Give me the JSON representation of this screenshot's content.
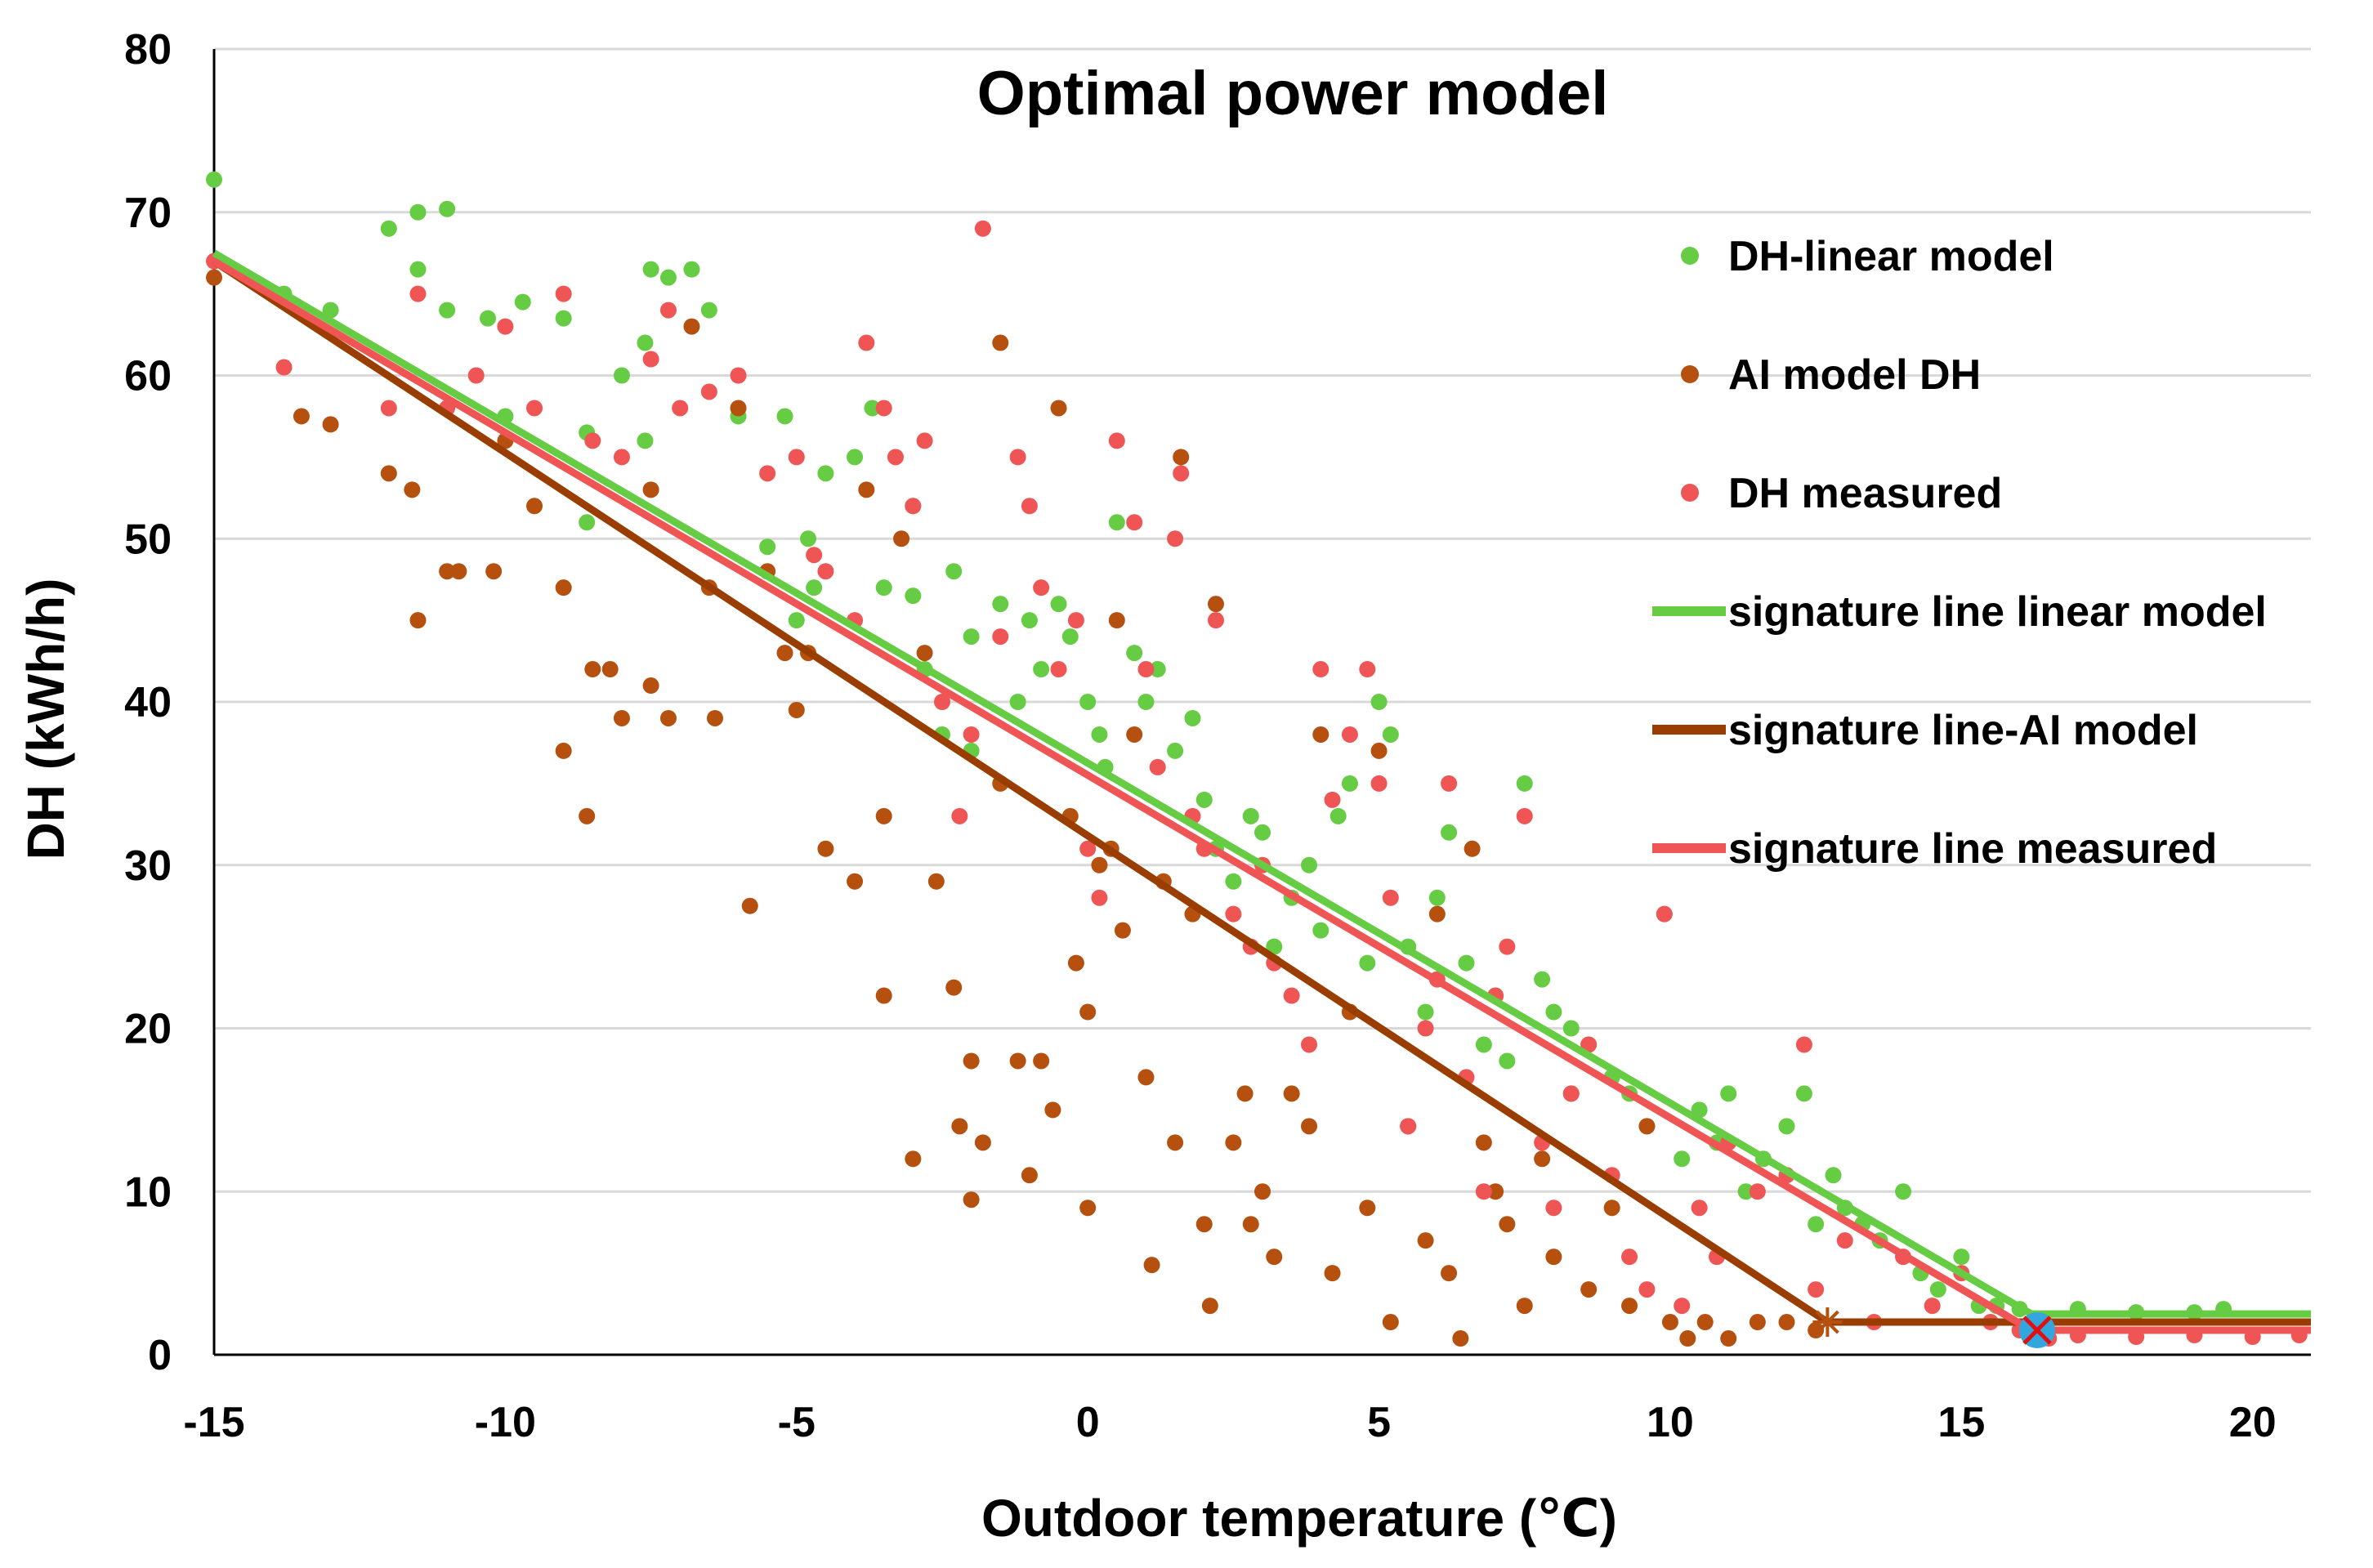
{
  "chart_data": {
    "type": "scatter",
    "title": "Optimal power model",
    "xlabel": "Outdoor temperature (℃)",
    "ylabel": "DH (kWh/h)",
    "xlim": [
      -15,
      21
    ],
    "ylim": [
      0,
      80
    ],
    "xticks": [
      -15,
      -10,
      -5,
      0,
      5,
      10,
      15,
      20
    ],
    "yticks": [
      0,
      10,
      20,
      30,
      40,
      50,
      60,
      70,
      80
    ],
    "grid": "horizontal",
    "legend_position": "right",
    "colors": {
      "green": "#66cc44",
      "brown": "#b5500f",
      "red": "#f05555",
      "blue_marker": "#33a7dd"
    },
    "series": [
      {
        "name": "DH-linear model",
        "kind": "scatter",
        "color": "#66cc44",
        "points": [
          [
            -15,
            72
          ],
          [
            -13.8,
            65
          ],
          [
            -13,
            64
          ],
          [
            -12,
            69
          ],
          [
            -11.5,
            70
          ],
          [
            -11.5,
            66.5
          ],
          [
            -11,
            70.2
          ],
          [
            -11,
            64
          ],
          [
            -10.3,
            63.5
          ],
          [
            -10,
            57.5
          ],
          [
            -9.7,
            64.5
          ],
          [
            -9,
            63.5
          ],
          [
            -8.6,
            56.5
          ],
          [
            -8.6,
            51
          ],
          [
            -8,
            60
          ],
          [
            -7.6,
            62
          ],
          [
            -7.5,
            66.5
          ],
          [
            -7.2,
            66
          ],
          [
            -7.6,
            56
          ],
          [
            -6.8,
            66.5
          ],
          [
            -6.5,
            64
          ],
          [
            -6,
            57.5
          ],
          [
            -5.5,
            49.5
          ],
          [
            -5.2,
            57.5
          ],
          [
            -5,
            45
          ],
          [
            -4.8,
            50
          ],
          [
            -4.7,
            47
          ],
          [
            -4.5,
            54
          ],
          [
            -4,
            55
          ],
          [
            -3.7,
            58
          ],
          [
            -3.5,
            47
          ],
          [
            -3,
            46.5
          ],
          [
            -3,
            52
          ],
          [
            -2.8,
            42
          ],
          [
            -2.5,
            38
          ],
          [
            -2.3,
            48
          ],
          [
            -2,
            44
          ],
          [
            -2,
            37
          ],
          [
            -1.5,
            46
          ],
          [
            -1.2,
            40
          ],
          [
            -1,
            45
          ],
          [
            -0.8,
            42
          ],
          [
            -0.5,
            46
          ],
          [
            -0.3,
            44
          ],
          [
            0,
            40
          ],
          [
            0.2,
            38
          ],
          [
            0.3,
            36
          ],
          [
            0.5,
            51
          ],
          [
            0.8,
            43
          ],
          [
            1,
            40
          ],
          [
            1.2,
            42
          ],
          [
            1.5,
            37
          ],
          [
            1.8,
            39
          ],
          [
            2,
            34
          ],
          [
            2.2,
            31
          ],
          [
            2.5,
            29
          ],
          [
            2.8,
            33
          ],
          [
            3,
            32
          ],
          [
            3.2,
            25
          ],
          [
            3.5,
            28
          ],
          [
            3.8,
            30
          ],
          [
            4,
            26
          ],
          [
            4.3,
            33
          ],
          [
            4.5,
            35
          ],
          [
            4.8,
            24
          ],
          [
            5,
            40
          ],
          [
            5.2,
            38
          ],
          [
            5.5,
            25
          ],
          [
            5.8,
            21
          ],
          [
            6,
            28
          ],
          [
            6.2,
            32
          ],
          [
            6.5,
            24
          ],
          [
            6.8,
            19
          ],
          [
            7,
            22
          ],
          [
            7.2,
            18
          ],
          [
            7.5,
            35
          ],
          [
            7.8,
            23
          ],
          [
            8,
            21
          ],
          [
            8.3,
            20
          ],
          [
            8.6,
            19
          ],
          [
            9,
            17
          ],
          [
            9.3,
            16
          ],
          [
            9.6,
            14
          ],
          [
            9.9,
            27
          ],
          [
            10.2,
            12
          ],
          [
            10.5,
            15
          ],
          [
            10.8,
            13
          ],
          [
            11,
            16
          ],
          [
            11.3,
            10
          ],
          [
            11.6,
            12
          ],
          [
            12,
            14
          ],
          [
            12.3,
            16
          ],
          [
            12.5,
            8
          ],
          [
            12.8,
            11
          ],
          [
            13,
            9
          ],
          [
            13.3,
            8
          ],
          [
            13.6,
            7
          ],
          [
            14,
            10
          ],
          [
            14.3,
            5
          ],
          [
            14.6,
            4
          ],
          [
            15,
            6
          ],
          [
            15.3,
            3
          ],
          [
            15.6,
            3
          ],
          [
            16,
            2.8
          ],
          [
            17,
            2.8
          ],
          [
            18,
            2.6
          ],
          [
            19,
            2.6
          ],
          [
            19.5,
            2.8
          ]
        ]
      },
      {
        "name": "AI model DH",
        "kind": "scatter",
        "color": "#b5500f",
        "points": [
          [
            -15,
            66
          ],
          [
            -13.5,
            57.5
          ],
          [
            -13,
            57
          ],
          [
            -12,
            54
          ],
          [
            -11.6,
            53
          ],
          [
            -11.5,
            45
          ],
          [
            -11,
            48
          ],
          [
            -10.8,
            48
          ],
          [
            -10.2,
            48
          ],
          [
            -10,
            56
          ],
          [
            -9.5,
            52
          ],
          [
            -9,
            37
          ],
          [
            -9,
            47
          ],
          [
            -8.6,
            33
          ],
          [
            -8.5,
            42
          ],
          [
            -8.2,
            42
          ],
          [
            -8,
            39
          ],
          [
            -7.5,
            53
          ],
          [
            -7.5,
            41
          ],
          [
            -7.2,
            39
          ],
          [
            -6.8,
            63
          ],
          [
            -6.5,
            47
          ],
          [
            -6.4,
            39
          ],
          [
            -6,
            58
          ],
          [
            -5.8,
            27.5
          ],
          [
            -5.5,
            48
          ],
          [
            -5.2,
            43
          ],
          [
            -5,
            39.5
          ],
          [
            -4.8,
            43
          ],
          [
            -4.5,
            31
          ],
          [
            -4,
            29
          ],
          [
            -3.8,
            53
          ],
          [
            -3.5,
            33
          ],
          [
            -3.5,
            22
          ],
          [
            -3.2,
            50
          ],
          [
            -3,
            12
          ],
          [
            -2.8,
            43
          ],
          [
            -2.6,
            29
          ],
          [
            -2.3,
            22.5
          ],
          [
            -2.2,
            14
          ],
          [
            -2,
            18
          ],
          [
            -2,
            9.5
          ],
          [
            -1.8,
            13
          ],
          [
            -1.5,
            62
          ],
          [
            -1.5,
            35
          ],
          [
            -1.2,
            18
          ],
          [
            -1,
            11
          ],
          [
            -0.8,
            18
          ],
          [
            -0.6,
            15
          ],
          [
            -0.5,
            58
          ],
          [
            -0.3,
            33
          ],
          [
            -0.2,
            24
          ],
          [
            0,
            9
          ],
          [
            0,
            21
          ],
          [
            0.2,
            30
          ],
          [
            0.4,
            31
          ],
          [
            0.5,
            45
          ],
          [
            0.6,
            26
          ],
          [
            0.8,
            38
          ],
          [
            1,
            17
          ],
          [
            1.1,
            5.5
          ],
          [
            1.3,
            29
          ],
          [
            1.5,
            13
          ],
          [
            1.6,
            55
          ],
          [
            1.8,
            27
          ],
          [
            2,
            8
          ],
          [
            2.1,
            3
          ],
          [
            2.2,
            46
          ],
          [
            2.5,
            13
          ],
          [
            2.7,
            16
          ],
          [
            2.8,
            8
          ],
          [
            3,
            10
          ],
          [
            3.2,
            6
          ],
          [
            3.5,
            16
          ],
          [
            3.8,
            14
          ],
          [
            4,
            38
          ],
          [
            4.2,
            5
          ],
          [
            4.5,
            21
          ],
          [
            4.8,
            9
          ],
          [
            5,
            37
          ],
          [
            5.2,
            2
          ],
          [
            5.5,
            14
          ],
          [
            5.8,
            7
          ],
          [
            6,
            27
          ],
          [
            6.2,
            5
          ],
          [
            6.4,
            1
          ],
          [
            6.6,
            31
          ],
          [
            6.8,
            13
          ],
          [
            7,
            10
          ],
          [
            7.2,
            8
          ],
          [
            7.5,
            3
          ],
          [
            7.8,
            12
          ],
          [
            8,
            6
          ],
          [
            8.3,
            16
          ],
          [
            8.6,
            4
          ],
          [
            9,
            9
          ],
          [
            9.3,
            3
          ],
          [
            9.6,
            14
          ],
          [
            10,
            2
          ],
          [
            10.3,
            1
          ],
          [
            10.6,
            2
          ],
          [
            11,
            1
          ],
          [
            11.5,
            2
          ],
          [
            12,
            2
          ],
          [
            12.5,
            1.5
          ]
        ]
      },
      {
        "name": "DH measured",
        "kind": "scatter",
        "color": "#f05555",
        "points": [
          [
            -15,
            67
          ],
          [
            -13.8,
            60.5
          ],
          [
            -12,
            58
          ],
          [
            -11.5,
            65
          ],
          [
            -11,
            58
          ],
          [
            -10.5,
            60
          ],
          [
            -10,
            63
          ],
          [
            -9.5,
            58
          ],
          [
            -9,
            65
          ],
          [
            -8.5,
            56
          ],
          [
            -8,
            55
          ],
          [
            -7.5,
            61
          ],
          [
            -7.2,
            64
          ],
          [
            -7,
            58
          ],
          [
            -6.5,
            59
          ],
          [
            -6,
            60
          ],
          [
            -5.5,
            54
          ],
          [
            -5,
            55
          ],
          [
            -4.7,
            49
          ],
          [
            -4.5,
            48
          ],
          [
            -4,
            45
          ],
          [
            -3.8,
            62
          ],
          [
            -3.5,
            58
          ],
          [
            -3.3,
            55
          ],
          [
            -3,
            52
          ],
          [
            -2.8,
            56
          ],
          [
            -2.5,
            40
          ],
          [
            -2.2,
            33
          ],
          [
            -2,
            38
          ],
          [
            -1.8,
            69
          ],
          [
            -1.5,
            44
          ],
          [
            -1.2,
            55
          ],
          [
            -1,
            52
          ],
          [
            -0.8,
            47
          ],
          [
            -0.5,
            42
          ],
          [
            -0.2,
            45
          ],
          [
            0,
            31
          ],
          [
            0.2,
            28
          ],
          [
            0.5,
            56
          ],
          [
            0.8,
            51
          ],
          [
            1,
            42
          ],
          [
            1.2,
            36
          ],
          [
            1.5,
            50
          ],
          [
            1.6,
            54
          ],
          [
            1.8,
            33
          ],
          [
            2,
            31
          ],
          [
            2.2,
            45
          ],
          [
            2.5,
            27
          ],
          [
            2.8,
            25
          ],
          [
            3,
            30
          ],
          [
            3.2,
            24
          ],
          [
            3.5,
            22
          ],
          [
            3.8,
            19
          ],
          [
            4,
            42
          ],
          [
            4.2,
            34
          ],
          [
            4.5,
            38
          ],
          [
            4.8,
            42
          ],
          [
            5,
            35
          ],
          [
            5.2,
            28
          ],
          [
            5.5,
            14
          ],
          [
            5.8,
            20
          ],
          [
            6,
            23
          ],
          [
            6.2,
            35
          ],
          [
            6.5,
            17
          ],
          [
            6.8,
            10
          ],
          [
            7,
            22
          ],
          [
            7.2,
            25
          ],
          [
            7.5,
            33
          ],
          [
            7.8,
            13
          ],
          [
            8,
            9
          ],
          [
            8.3,
            16
          ],
          [
            8.6,
            19
          ],
          [
            9,
            11
          ],
          [
            9.3,
            6
          ],
          [
            9.6,
            4
          ],
          [
            9.9,
            27
          ],
          [
            10.2,
            3
          ],
          [
            10.5,
            9
          ],
          [
            10.8,
            6
          ],
          [
            11,
            13
          ],
          [
            11.5,
            10
          ],
          [
            12,
            11
          ],
          [
            12.3,
            19
          ],
          [
            12.5,
            4
          ],
          [
            13,
            7
          ],
          [
            13.5,
            2
          ],
          [
            14,
            6
          ],
          [
            14.5,
            3
          ],
          [
            15,
            5
          ],
          [
            15.5,
            2
          ],
          [
            16,
            1.5
          ],
          [
            16.5,
            1
          ],
          [
            17,
            1.2
          ],
          [
            18,
            1.1
          ],
          [
            19,
            1.2
          ],
          [
            20,
            1.1
          ],
          [
            20.8,
            1.2
          ]
        ]
      }
    ],
    "lines": [
      {
        "name": "signature line linear model",
        "color": "#66cc44",
        "points": [
          [
            -15,
            67.5
          ],
          [
            16.2,
            2.5
          ],
          [
            21,
            2.5
          ]
        ]
      },
      {
        "name": "signature line-AI model",
        "color": "#993e00",
        "points": [
          [
            -15,
            67
          ],
          [
            12.7,
            2
          ],
          [
            21,
            2
          ]
        ]
      },
      {
        "name": "signature line measured",
        "color": "#f05555",
        "points": [
          [
            -15,
            67
          ],
          [
            16.2,
            1.5
          ],
          [
            21,
            1.5
          ]
        ]
      }
    ],
    "markers": [
      {
        "name": "AI balance point",
        "x": 12.7,
        "y": 2,
        "symbol": "asterisk",
        "color": "#b5500f"
      },
      {
        "name": "measured balance point",
        "x": 16.3,
        "y": 1.5,
        "symbol": "circle-x",
        "color": "#33a7dd"
      }
    ]
  }
}
